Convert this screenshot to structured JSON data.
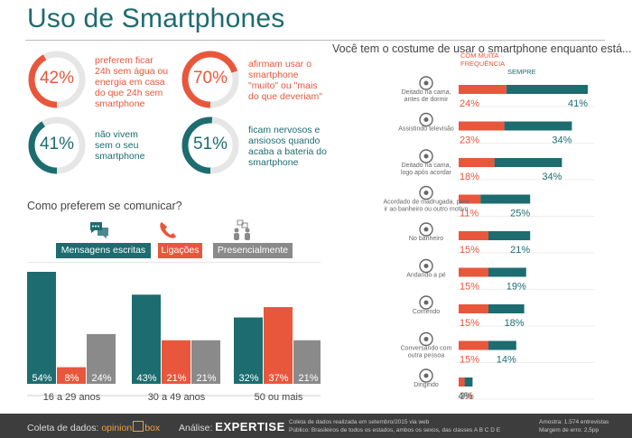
{
  "title": "Uso de Smartphones",
  "stats": [
    {
      "pct": "42%",
      "text": [
        "preferem ficar",
        "24h sem água ou",
        "energia em casa",
        "do que 24h sem",
        "smartphone"
      ],
      "color": "#e8573c",
      "fraction": 0.42
    },
    {
      "pct": "70%",
      "text": [
        "afirmam usar o",
        "smartphone",
        "\"muito\" ou \"mais",
        "do que deveriam\""
      ],
      "color": "#e8573c",
      "fraction": 0.7
    },
    {
      "pct": "41%",
      "text": [
        "não vivem",
        "sem o seu",
        "smartphone"
      ],
      "color": "#1d6c70",
      "fraction": 0.41
    },
    {
      "pct": "51%",
      "text": [
        "ficam nervosos e",
        "ansiosos quando",
        "acaba a bateria do",
        "smartphone"
      ],
      "color": "#1d6c70",
      "fraction": 0.51
    }
  ],
  "communicate_title": "Como preferem se comunicar?",
  "comm_pills": [
    {
      "label": "Mensagens escritas",
      "color": "#1d6c70",
      "icon": "chat-bubbles-icon"
    },
    {
      "label": "Ligações",
      "color": "#e8573c",
      "icon": "phone-icon"
    },
    {
      "label": "Presencialmente",
      "color": "#8a8a8a",
      "icon": "people-talking-icon"
    }
  ],
  "usage_title": "Você tem o costume de usar o smartphone enquanto está...",
  "usage_legend": {
    "often": "COM MUITA\nFREQUÊNCIA",
    "always": "SEMPRE"
  },
  "colors": {
    "teal": "#1d6c70",
    "red": "#e8573c",
    "gray": "#8a8a8a",
    "dark": "#3d3d3d"
  },
  "chart_data": [
    {
      "type": "bar",
      "categories": [
        "16 a 29 anos",
        "30 a 49 anos",
        "50 ou mais"
      ],
      "series": [
        {
          "name": "Mensagens escritas",
          "values": [
            54,
            43,
            32
          ]
        },
        {
          "name": "Ligações",
          "values": [
            8,
            21,
            37
          ]
        },
        {
          "name": "Presencialmente",
          "values": [
            24,
            21,
            21
          ]
        }
      ],
      "title": "Como preferem se comunicar?",
      "ylim": [
        0,
        54
      ]
    },
    {
      "type": "bar",
      "orientation": "horizontal",
      "stacked": true,
      "title": "Você tem o costume de usar o smartphone enquanto está...",
      "categories": [
        "Deitado na cama, antes de dormir",
        "Assistindo televisão",
        "Deitado na cama, logo após acordar",
        "Acordado de madrugada, para ir ao banheiro ou outro motivo",
        "No banheiro",
        "Andando a pé",
        "Comendo",
        "Conversando com outra pessoa",
        "Dirigindo"
      ],
      "category_icons": [
        "bed-icon",
        "tv-icon",
        "sunrise-bed-icon",
        "moon-icon",
        "toilet-icon",
        "walking-icon",
        "plate-icon",
        "people-talking-icon",
        "car-icon"
      ],
      "series": [
        {
          "name": "COM MUITA FREQUÊNCIA",
          "values": [
            24,
            23,
            18,
            11,
            15,
            15,
            15,
            15,
            3
          ]
        },
        {
          "name": "SEMPRE",
          "values": [
            41,
            34,
            34,
            25,
            21,
            19,
            18,
            14,
            4
          ]
        }
      ]
    }
  ],
  "footer": {
    "coleta_label": "Coleta de dados:",
    "opinion": "opinion",
    "box": "box",
    "analise_label": "Análise:",
    "expertise": "EXPERTISE",
    "note1": "Coleta de dados realizada em setembro/2015 via web",
    "note2": "Público: Brasileiros de todos os estados, ambos os sexos, das classes A B C D E",
    "amostra": "Amostra: 1.574 entrevistas",
    "margem": "Margem de erro: 2,5pp"
  }
}
